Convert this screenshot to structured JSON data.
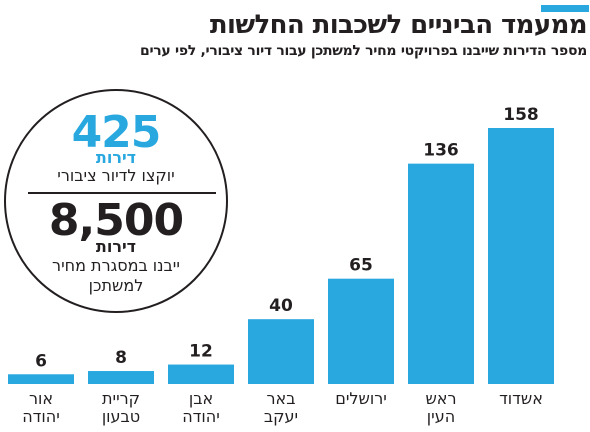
{
  "header": {
    "title": "ממעמד הביניים לשכבות החלשות",
    "subtitle": "מספר הדירות שייבנו בפרויקטי מחיר למשתכן עבור דיור ציבורי, לפי ערים"
  },
  "callout": {
    "stat1": {
      "value": "425",
      "unit": "דירות",
      "text": "יוקצו לדיור ציבורי"
    },
    "stat2": {
      "value": "8,500",
      "unit": "דירות",
      "text_line1": "ייבנו במסגרת מחיר",
      "text_line2": "למשתכן"
    }
  },
  "colors": {
    "accent": "#29a8e0",
    "text": "#231f20"
  },
  "chart_data": {
    "type": "bar",
    "categories": [
      [
        "אשדוד"
      ],
      [
        "ראש",
        "העין"
      ],
      [
        "ירושלים"
      ],
      [
        "באר",
        "יעקב"
      ],
      [
        "אבן",
        "יהודה"
      ],
      [
        "קריית",
        "טבעון"
      ],
      [
        "אור",
        "יהודה"
      ]
    ],
    "values": [
      158,
      136,
      65,
      40,
      12,
      8,
      6
    ],
    "value_labels": [
      "158",
      "136",
      "65",
      "40",
      "12",
      "8",
      "6"
    ],
    "ylim": [
      0,
      158
    ],
    "grid": false,
    "legend": "none",
    "order": "right-to-left"
  }
}
